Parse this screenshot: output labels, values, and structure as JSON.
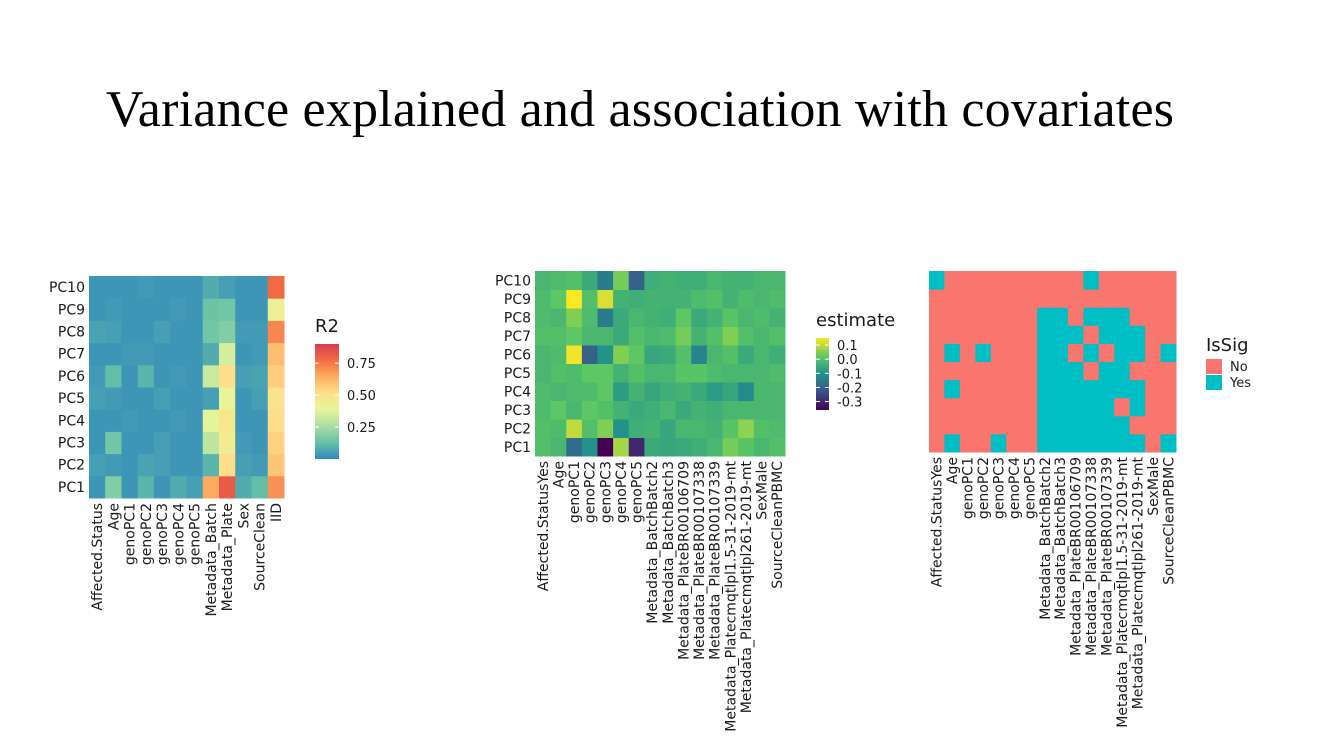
{
  "slide": {
    "title": "Variance explained and association with covariates"
  },
  "chart_data": [
    {
      "type": "heatmap",
      "legend": {
        "title": "R2",
        "ticks": [
          0.25,
          0.5,
          0.75
        ],
        "tick_labels": [
          "0.25",
          "0.50",
          "0.75"
        ],
        "range": [
          0,
          0.9
        ]
      },
      "x": [
        "Affected.Status",
        "Age",
        "genoPC1",
        "genoPC2",
        "genoPC3",
        "genoPC4",
        "genoPC5",
        "Metadata_Batch",
        "Metadata_Plate",
        "Sex",
        "SourceClean",
        "IID"
      ],
      "y": [
        "PC1",
        "PC2",
        "PC3",
        "PC4",
        "PC5",
        "PC6",
        "PC7",
        "PC8",
        "PC9",
        "PC10"
      ],
      "values": [
        [
          0.03,
          0.18,
          0.03,
          0.1,
          0.03,
          0.08,
          0.05,
          0.65,
          0.82,
          0.08,
          0.12,
          0.7
        ],
        [
          0.05,
          0.04,
          0.03,
          0.06,
          0.05,
          0.03,
          0.03,
          0.1,
          0.52,
          0.05,
          0.04,
          0.58
        ],
        [
          0.03,
          0.15,
          0.03,
          0.03,
          0.05,
          0.03,
          0.03,
          0.3,
          0.45,
          0.04,
          0.03,
          0.55
        ],
        [
          0.03,
          0.03,
          0.04,
          0.03,
          0.03,
          0.04,
          0.03,
          0.38,
          0.48,
          0.03,
          0.03,
          0.52
        ],
        [
          0.05,
          0.04,
          0.03,
          0.03,
          0.05,
          0.03,
          0.03,
          0.05,
          0.4,
          0.03,
          0.05,
          0.5
        ],
        [
          0.04,
          0.12,
          0.03,
          0.1,
          0.03,
          0.04,
          0.03,
          0.32,
          0.52,
          0.05,
          0.06,
          0.56
        ],
        [
          0.03,
          0.03,
          0.04,
          0.04,
          0.03,
          0.03,
          0.03,
          0.08,
          0.35,
          0.03,
          0.04,
          0.6
        ],
        [
          0.06,
          0.05,
          0.03,
          0.03,
          0.05,
          0.03,
          0.03,
          0.15,
          0.18,
          0.04,
          0.04,
          0.72
        ],
        [
          0.03,
          0.04,
          0.03,
          0.03,
          0.03,
          0.04,
          0.03,
          0.14,
          0.15,
          0.03,
          0.03,
          0.42
        ],
        [
          0.03,
          0.03,
          0.03,
          0.04,
          0.03,
          0.03,
          0.03,
          0.08,
          0.05,
          0.03,
          0.03,
          0.78
        ]
      ]
    },
    {
      "type": "heatmap",
      "legend": {
        "title": "estimate",
        "ticks": [
          0.1,
          0.0,
          -0.1,
          -0.2,
          -0.3
        ],
        "tick_labels": [
          "0.1",
          "0.0",
          "-0.1",
          "-0.2",
          "-0.3"
        ],
        "range": [
          -0.36,
          0.15
        ]
      },
      "x": [
        "Affected.StatusYes",
        "Age",
        "genoPC1",
        "genoPC2",
        "genoPC3",
        "genoPC4",
        "genoPC5",
        "Metadata_BatchBatch2",
        "Metadata_BatchBatch3",
        "Metadata_PlateBR00106709",
        "Metadata_PlateBR00107338",
        "Metadata_PlateBR00107339",
        "Metadata_Platecmqtlpl1.5-31-2019-mt",
        "Metadata_Platecmqtlpl261-2019-mt",
        "SexMale",
        "SourceCleanPBMC"
      ],
      "y": [
        "PC1",
        "PC2",
        "PC3",
        "PC4",
        "PC5",
        "PC6",
        "PC7",
        "PC8",
        "PC9",
        "PC10"
      ],
      "values": [
        [
          0.0,
          -0.02,
          -0.18,
          -0.1,
          -0.36,
          0.08,
          -0.3,
          -0.05,
          -0.06,
          -0.05,
          -0.04,
          -0.02,
          0.04,
          0.01,
          -0.02,
          0.0
        ],
        [
          0.0,
          -0.01,
          0.1,
          0.0,
          0.05,
          -0.1,
          -0.04,
          -0.03,
          -0.06,
          -0.02,
          -0.02,
          -0.03,
          0.01,
          0.06,
          0.0,
          -0.01
        ],
        [
          -0.01,
          0.02,
          -0.02,
          0.02,
          0.0,
          -0.03,
          -0.05,
          -0.04,
          -0.02,
          -0.05,
          -0.03,
          -0.04,
          -0.02,
          -0.02,
          -0.02,
          -0.02
        ],
        [
          -0.01,
          -0.02,
          -0.01,
          -0.01,
          0.02,
          -0.08,
          -0.03,
          -0.06,
          -0.04,
          -0.03,
          -0.05,
          -0.08,
          -0.06,
          -0.12,
          -0.02,
          -0.02
        ],
        [
          -0.02,
          0.0,
          -0.01,
          0.02,
          0.02,
          -0.03,
          0.0,
          -0.02,
          -0.02,
          0.01,
          0.01,
          -0.01,
          -0.02,
          -0.02,
          -0.02,
          -0.01
        ],
        [
          -0.02,
          -0.01,
          0.14,
          -0.2,
          -0.1,
          0.05,
          0.02,
          -0.06,
          -0.05,
          0.0,
          -0.13,
          -0.02,
          0.0,
          -0.05,
          -0.02,
          -0.04
        ],
        [
          0.0,
          0.0,
          0.02,
          -0.02,
          -0.02,
          -0.05,
          0.0,
          -0.02,
          -0.01,
          0.04,
          -0.03,
          0.0,
          0.05,
          0.0,
          -0.02,
          0.0
        ],
        [
          -0.01,
          -0.02,
          0.05,
          -0.01,
          -0.15,
          -0.05,
          -0.02,
          -0.03,
          -0.04,
          0.02,
          -0.05,
          -0.03,
          0.01,
          -0.02,
          -0.01,
          -0.03
        ],
        [
          -0.01,
          0.02,
          0.15,
          0.0,
          0.12,
          -0.03,
          -0.04,
          -0.03,
          -0.03,
          -0.03,
          -0.01,
          0.0,
          -0.03,
          -0.01,
          -0.02,
          -0.01
        ],
        [
          -0.02,
          -0.01,
          0.0,
          -0.05,
          -0.15,
          0.04,
          -0.2,
          -0.04,
          -0.03,
          -0.04,
          -0.04,
          -0.02,
          -0.03,
          -0.03,
          -0.02,
          -0.02
        ]
      ]
    },
    {
      "type": "heatmap",
      "legend": {
        "title": "IsSig",
        "categories": [
          "No",
          "Yes"
        ],
        "colors": [
          "#F8766D",
          "#00BFC4"
        ]
      },
      "x": [
        "Affected.StatusYes",
        "Age",
        "genoPC1",
        "genoPC2",
        "genoPC3",
        "genoPC4",
        "genoPC5",
        "Metadata_BatchBatch2",
        "Metadata_BatchBatch3",
        "Metadata_PlateBR00106709",
        "Metadata_PlateBR00107338",
        "Metadata_PlateBR00107339",
        "Metadata_Platecmqtlpl1.5-31-2019-mt",
        "Metadata_Platecmqtlpl261-2019-mt",
        "SexMale",
        "SourceCleanPBMC"
      ],
      "y": [
        "PC1",
        "PC2",
        "PC3",
        "PC4",
        "PC5",
        "PC6",
        "PC7",
        "PC8",
        "PC9",
        "PC10"
      ],
      "values": [
        [
          0,
          1,
          0,
          0,
          1,
          0,
          0,
          1,
          1,
          1,
          1,
          1,
          1,
          1,
          0,
          1
        ],
        [
          0,
          0,
          0,
          0,
          0,
          0,
          0,
          1,
          1,
          1,
          1,
          1,
          1,
          0,
          0,
          0
        ],
        [
          0,
          0,
          0,
          0,
          0,
          0,
          0,
          1,
          1,
          1,
          1,
          1,
          0,
          1,
          0,
          0
        ],
        [
          0,
          1,
          0,
          0,
          0,
          0,
          0,
          1,
          1,
          1,
          1,
          1,
          1,
          1,
          0,
          0
        ],
        [
          0,
          0,
          0,
          0,
          0,
          0,
          0,
          1,
          1,
          1,
          0,
          1,
          1,
          0,
          0,
          0
        ],
        [
          0,
          1,
          0,
          1,
          0,
          0,
          0,
          1,
          1,
          0,
          1,
          0,
          1,
          1,
          0,
          1
        ],
        [
          0,
          0,
          0,
          0,
          0,
          0,
          0,
          1,
          1,
          1,
          0,
          1,
          1,
          1,
          0,
          0
        ],
        [
          0,
          0,
          0,
          0,
          0,
          0,
          0,
          1,
          1,
          0,
          1,
          1,
          1,
          0,
          0,
          0
        ],
        [
          0,
          0,
          0,
          0,
          0,
          0,
          0,
          0,
          0,
          0,
          0,
          0,
          0,
          0,
          0,
          0
        ],
        [
          1,
          0,
          0,
          0,
          0,
          0,
          0,
          0,
          0,
          0,
          1,
          0,
          0,
          0,
          0,
          0
        ]
      ]
    }
  ]
}
